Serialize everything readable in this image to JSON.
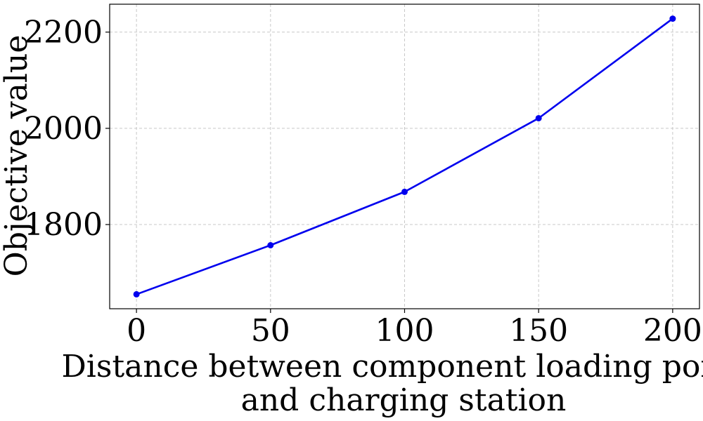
{
  "chart_data": {
    "type": "line",
    "title": "",
    "xlabel_lines": [
      "Distance between component loading point",
      "and charging station"
    ],
    "ylabel": "Objective value",
    "x": [
      0,
      50,
      100,
      150,
      200
    ],
    "series": [
      {
        "values": [
          1655,
          1757,
          1868,
          2021,
          2228
        ],
        "color": "#0000ee"
      }
    ],
    "xlim": [
      -10,
      210
    ],
    "ylim": [
      1625,
      2258
    ],
    "xticks": [
      0,
      50,
      100,
      150,
      200
    ],
    "xtick_labels": [
      "0",
      "50",
      "100",
      "150",
      "200"
    ],
    "yticks": [
      1800,
      2000,
      2200
    ],
    "ytick_labels": [
      "1800",
      "2000",
      "2200"
    ],
    "grid": true,
    "marker": "circle"
  }
}
